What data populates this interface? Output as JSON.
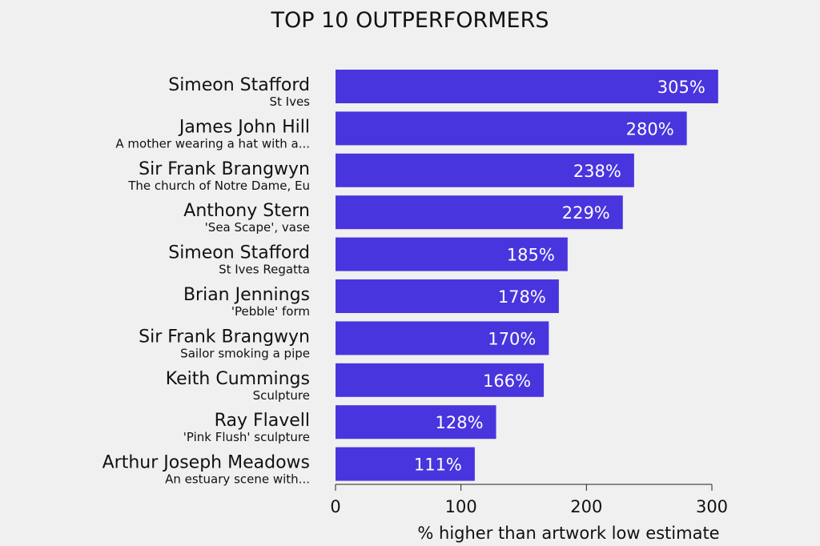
{
  "chart_data": {
    "type": "bar",
    "orientation": "horizontal",
    "title": "TOP 10 OUTPERFORMERS",
    "xlabel": "% higher than artwork low estimate",
    "ylabel": "",
    "xlim": [
      0,
      300
    ],
    "xticks": [
      0,
      100,
      200,
      300
    ],
    "grid": false,
    "bar_color": "#4935de",
    "categories": [
      {
        "artist": "Simeon Stafford",
        "work": "St Ives",
        "value": 305,
        "label": "305%"
      },
      {
        "artist": "James John Hill",
        "work": "A mother wearing a hat with a...",
        "value": 280,
        "label": "280%"
      },
      {
        "artist": "Sir Frank Brangwyn",
        "work": "The church of Notre Dame, Eu",
        "value": 238,
        "label": "238%"
      },
      {
        "artist": "Anthony Stern",
        "work": "'Sea Scape', vase",
        "value": 229,
        "label": "229%"
      },
      {
        "artist": "Simeon Stafford",
        "work": "St Ives Regatta",
        "value": 185,
        "label": "185%"
      },
      {
        "artist": "Brian Jennings",
        "work": "'Pebble' form",
        "value": 178,
        "label": "178%"
      },
      {
        "artist": "Sir Frank Brangwyn",
        "work": "Sailor smoking a pipe",
        "value": 170,
        "label": "170%"
      },
      {
        "artist": "Keith Cummings",
        "work": "Sculpture",
        "value": 166,
        "label": "166%"
      },
      {
        "artist": "Ray Flavell",
        "work": "'Pink Flush' sculpture",
        "value": 128,
        "label": "128%"
      },
      {
        "artist": "Arthur Joseph Meadows",
        "work": "An estuary scene with...",
        "value": 111,
        "label": "111%"
      }
    ]
  }
}
